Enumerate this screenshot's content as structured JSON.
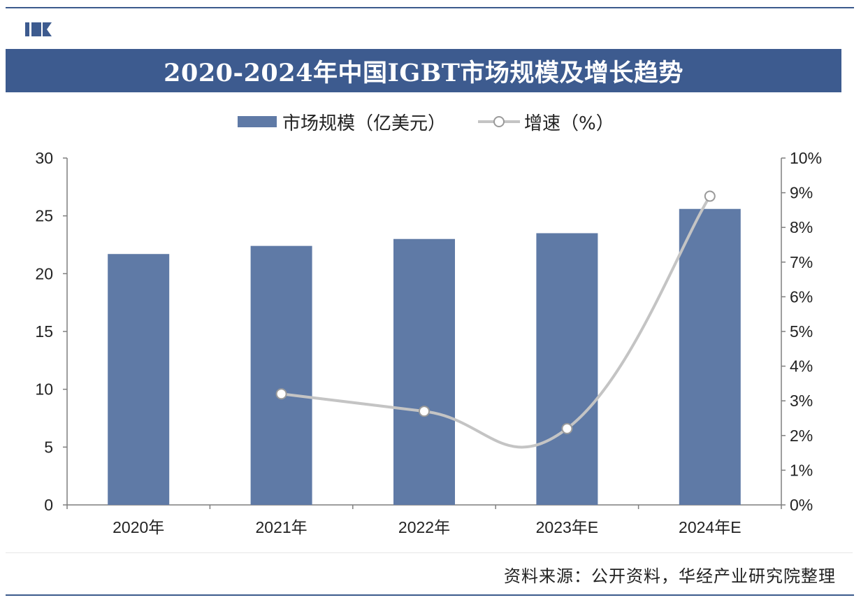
{
  "title": "2020-2024年中国IGBT市场规模及增长趋势",
  "legend": {
    "bar_label": "市场规模（亿美元）",
    "line_label": "增速（%）"
  },
  "source": "资料来源：公开资料，华经产业研究院整理",
  "watermark": "华经产业研究院",
  "colors": {
    "bar": "#5f7aa6",
    "line": "#c4c4c4",
    "title_bg": "#3d5b8f"
  },
  "chart_data": {
    "type": "bar",
    "categories": [
      "2020年",
      "2021年",
      "2022年",
      "2023年E",
      "2024年E"
    ],
    "series": [
      {
        "name": "市场规模（亿美元）",
        "type": "bar",
        "axis": "left",
        "values": [
          21.7,
          22.4,
          23.0,
          23.5,
          25.6
        ]
      },
      {
        "name": "增速（%）",
        "type": "line",
        "axis": "right",
        "values": [
          null,
          3.2,
          2.7,
          2.2,
          8.9
        ]
      }
    ],
    "y_left": {
      "lim": [
        0,
        30
      ],
      "ticks": [
        0,
        5,
        10,
        15,
        20,
        25,
        30
      ]
    },
    "y_right": {
      "lim": [
        0,
        10
      ],
      "ticks": [
        0,
        1,
        2,
        3,
        4,
        5,
        6,
        7,
        8,
        9,
        10
      ],
      "tick_labels": [
        "0%",
        "1%",
        "2%",
        "3%",
        "4%",
        "5%",
        "6%",
        "7%",
        "8%",
        "9%",
        "10%"
      ]
    },
    "grid": false,
    "legend_position": "top"
  }
}
